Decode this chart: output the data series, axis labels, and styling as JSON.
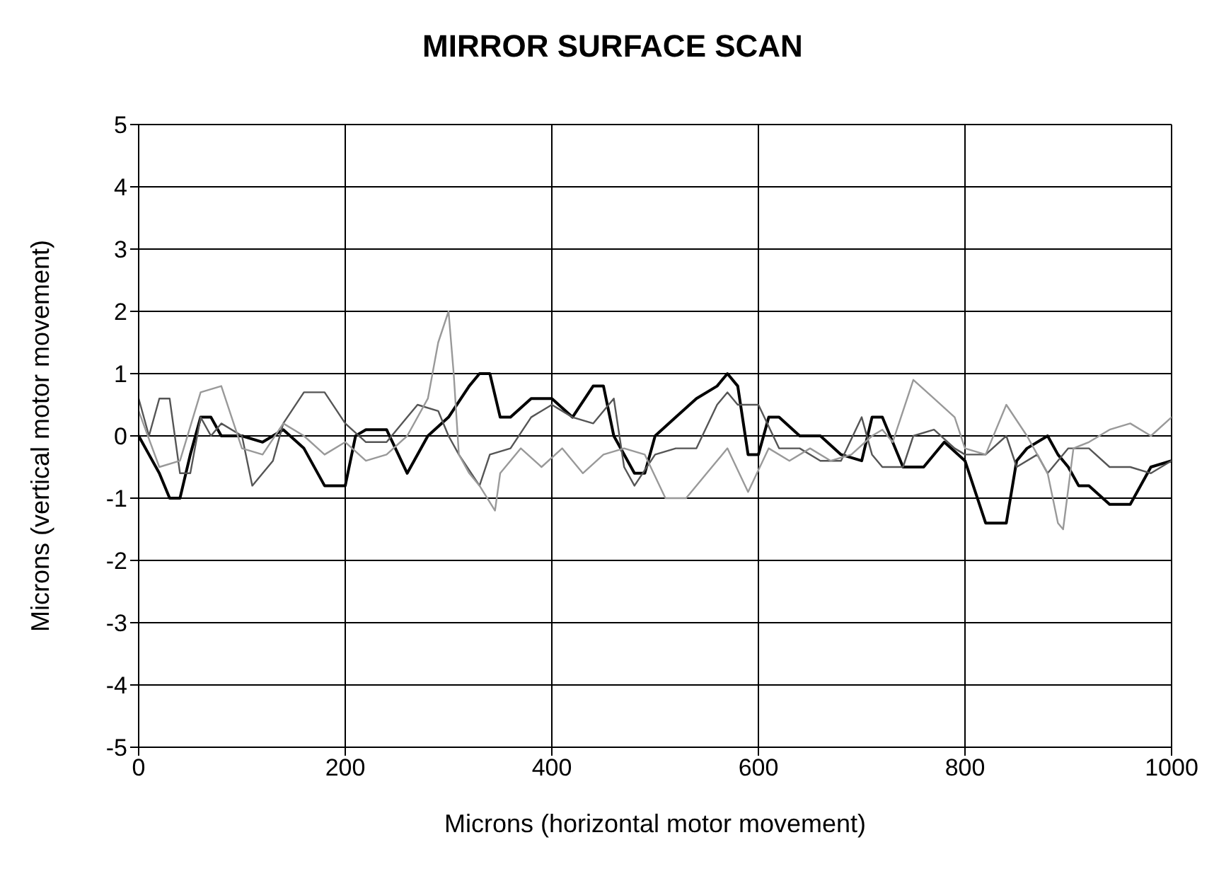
{
  "chart_data": {
    "type": "line",
    "title": "MIRROR SURFACE SCAN",
    "xlabel": "Microns (horizontal motor movement)",
    "ylabel": "Microns (vertical motor movement)",
    "xlim": [
      0,
      1000
    ],
    "xticks": [
      0,
      200,
      400,
      600,
      800,
      1000
    ],
    "ylim": [
      -5,
      5
    ],
    "yticks": [
      -5,
      -4,
      -3,
      -2,
      -1,
      0,
      1,
      2,
      3,
      4,
      5
    ],
    "grid": true,
    "marker": "none",
    "line_style": "solid",
    "series": [
      {
        "color": "#000000",
        "x": [
          0,
          10,
          20,
          30,
          40,
          50,
          60,
          70,
          80,
          100,
          120,
          140,
          160,
          180,
          200,
          210,
          220,
          240,
          260,
          280,
          300,
          320,
          330,
          340,
          350,
          360,
          380,
          400,
          420,
          440,
          450,
          460,
          480,
          490,
          500,
          520,
          540,
          560,
          570,
          580,
          590,
          600,
          610,
          620,
          640,
          660,
          680,
          700,
          710,
          720,
          740,
          760,
          780,
          800,
          810,
          820,
          840,
          850,
          860,
          880,
          890,
          900,
          910,
          920,
          940,
          960,
          980,
          1000
        ],
        "values": [
          0,
          -0.3,
          -0.6,
          -1,
          -1,
          -0.3,
          0.3,
          0.3,
          0,
          0,
          -0.1,
          0.1,
          -0.2,
          -0.8,
          -0.8,
          0,
          0.1,
          0.1,
          -0.6,
          0,
          0.3,
          0.8,
          1,
          1,
          0.3,
          0.3,
          0.6,
          0.6,
          0.3,
          0.8,
          0.8,
          0,
          -0.6,
          -0.6,
          0,
          0.3,
          0.6,
          0.8,
          1,
          0.8,
          -0.3,
          -0.3,
          0.3,
          0.3,
          0,
          0,
          -0.3,
          -0.4,
          0.3,
          0.3,
          -0.5,
          -0.5,
          -0.1,
          -0.4,
          -0.9,
          -1.4,
          -1.4,
          -0.4,
          -0.2,
          0,
          -0.3,
          -0.5,
          -0.8,
          -0.8,
          -1.1,
          -1.1,
          -0.5,
          -0.4
        ]
      },
      {
        "color": "#555555",
        "x": [
          0,
          10,
          20,
          30,
          40,
          50,
          60,
          70,
          80,
          100,
          110,
          130,
          140,
          160,
          180,
          200,
          220,
          240,
          260,
          270,
          290,
          300,
          310,
          330,
          340,
          360,
          380,
          400,
          420,
          440,
          460,
          470,
          480,
          500,
          520,
          540,
          560,
          570,
          580,
          600,
          620,
          640,
          660,
          680,
          700,
          710,
          720,
          740,
          750,
          770,
          790,
          800,
          820,
          840,
          850,
          870,
          880,
          900,
          920,
          940,
          960,
          980,
          1000
        ],
        "values": [
          0.6,
          0,
          0.6,
          0.6,
          -0.6,
          -0.6,
          0.3,
          0,
          0.2,
          0,
          -0.8,
          -0.4,
          0.2,
          0.7,
          0.7,
          0.2,
          -0.1,
          -0.1,
          0.3,
          0.5,
          0.4,
          0,
          -0.3,
          -0.8,
          -0.3,
          -0.2,
          0.3,
          0.5,
          0.3,
          0.2,
          0.6,
          -0.5,
          -0.8,
          -0.3,
          -0.2,
          -0.2,
          0.5,
          0.7,
          0.5,
          0.5,
          -0.2,
          -0.2,
          -0.4,
          -0.4,
          0.3,
          -0.3,
          -0.5,
          -0.5,
          0,
          0.1,
          -0.2,
          -0.3,
          -0.3,
          0,
          -0.5,
          -0.3,
          -0.6,
          -0.2,
          -0.2,
          -0.5,
          -0.5,
          -0.6,
          -0.4
        ]
      },
      {
        "color": "#999999",
        "x": [
          0,
          20,
          40,
          60,
          80,
          100,
          120,
          140,
          160,
          180,
          200,
          220,
          240,
          260,
          280,
          290,
          300,
          305,
          310,
          320,
          330,
          345,
          350,
          370,
          390,
          410,
          430,
          450,
          470,
          490,
          510,
          530,
          550,
          570,
          590,
          610,
          630,
          650,
          670,
          690,
          710,
          720,
          730,
          750,
          770,
          790,
          800,
          820,
          840,
          860,
          870,
          880,
          890,
          895,
          905,
          920,
          940,
          960,
          980,
          1000
        ],
        "values": [
          0.4,
          -0.5,
          -0.4,
          0.7,
          0.8,
          -0.2,
          -0.3,
          0.2,
          0,
          -0.3,
          -0.1,
          -0.4,
          -0.3,
          0,
          0.6,
          1.5,
          2,
          1,
          -0.3,
          -0.6,
          -0.8,
          -1.2,
          -0.6,
          -0.2,
          -0.5,
          -0.2,
          -0.6,
          -0.3,
          -0.2,
          -0.3,
          -1,
          -1,
          -0.6,
          -0.2,
          -0.9,
          -0.2,
          -0.4,
          -0.2,
          -0.4,
          -0.3,
          0,
          0.1,
          -0.1,
          0.9,
          0.6,
          0.3,
          -0.2,
          -0.3,
          0.5,
          0,
          -0.3,
          -0.6,
          -1.4,
          -1.5,
          -0.2,
          -0.1,
          0.1,
          0.2,
          0,
          0.3
        ]
      }
    ]
  }
}
